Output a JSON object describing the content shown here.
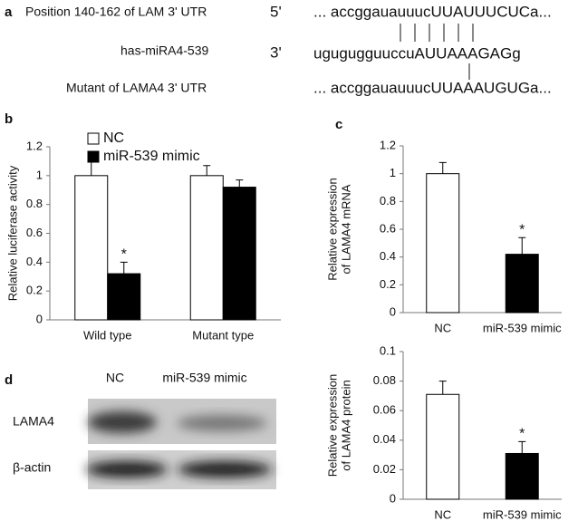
{
  "panel_labels": [
    "a",
    "b",
    "c",
    "d"
  ],
  "sequence_panel": {
    "rows": [
      {
        "label": "Position 140-162 of LAM 3' UTR",
        "end": "5'",
        "sequence": "... accggauauuucUUAUUUCUCa..."
      },
      {
        "label": "has-miRA4-539",
        "end": "3'",
        "sequence": "ugugugguuccuAUUAAAGAGg"
      },
      {
        "label": "Mutant of LAMA4 3' UTR",
        "sequence": "... accggauauuucUUAAAUGUGa..."
      }
    ]
  },
  "blot_panel": {
    "columns": [
      "NC",
      "miR-539 mimic"
    ],
    "rows": [
      "LAMA4",
      "β-actin"
    ]
  },
  "chart_data": [
    {
      "type": "bar",
      "ylabel": [
        "Relative luciferase activity"
      ],
      "categories": [
        "Wild type",
        "Mutant type"
      ],
      "series": [
        {
          "name": "NC",
          "color": "#ffffff",
          "values": [
            1,
            1
          ],
          "errors": [
            0.12,
            0.07
          ]
        },
        {
          "name": "miR-539 mimic",
          "color": "#000000",
          "values": [
            0.32,
            0.92
          ],
          "errors": [
            0.08,
            0.05
          ],
          "annotations": [
            "*",
            null
          ]
        }
      ],
      "ylim": [
        0,
        1.2
      ],
      "yticks": [
        0,
        0.2,
        0.4,
        0.6,
        0.8,
        1,
        1.2
      ],
      "legend": "top-left"
    },
    {
      "type": "bar",
      "ylabel": [
        "Relative expression",
        "of LAMA4 mRNA"
      ],
      "categories": [
        "NC",
        "miR-539 mimic"
      ],
      "colors": [
        "#ffffff",
        "#000000"
      ],
      "values": [
        1,
        0.42
      ],
      "errors": [
        0.08,
        0.12
      ],
      "annotations": [
        null,
        "*"
      ],
      "ylim": [
        0,
        1.2
      ],
      "yticks": [
        0,
        0.2,
        0.4,
        0.6,
        0.8,
        1,
        1.2
      ]
    },
    {
      "type": "bar",
      "ylabel": [
        "Relative expression",
        "of LAMA4 protein"
      ],
      "categories": [
        "NC",
        "miR-539 mimic"
      ],
      "colors": [
        "#ffffff",
        "#000000"
      ],
      "values": [
        0.071,
        0.031
      ],
      "errors": [
        0.009,
        0.008
      ],
      "annotations": [
        null,
        "*"
      ],
      "ylim": [
        0,
        0.1
      ],
      "yticks": [
        0,
        0.02,
        0.04,
        0.06,
        0.08,
        0.1
      ]
    }
  ]
}
